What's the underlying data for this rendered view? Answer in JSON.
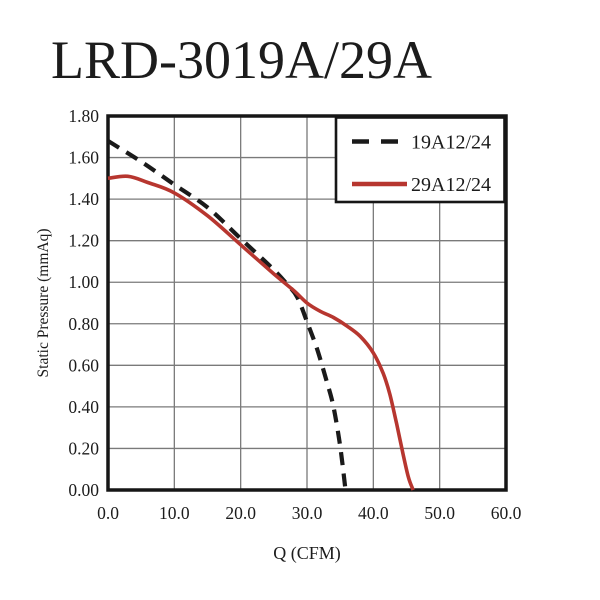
{
  "page": {
    "background": "#ffffff"
  },
  "chart_data": {
    "type": "line",
    "title": "LRD-3019A/29A",
    "xlabel": "Q (CFM)",
    "ylabel": "Static Pressure (mmAq)",
    "xlim": [
      0,
      60
    ],
    "ylim": [
      0,
      1.8
    ],
    "x_ticks": [
      "0.0",
      "10.0",
      "20.0",
      "30.0",
      "40.0",
      "50.0",
      "60.0"
    ],
    "y_ticks": [
      "0.00",
      "0.20",
      "0.40",
      "0.60",
      "0.80",
      "1.00",
      "1.20",
      "1.40",
      "1.60",
      "1.80"
    ],
    "grid": true,
    "grid_color": "#7a7a7a",
    "frame_color": "#161616",
    "legend_position": "top-right-inside",
    "series": [
      {
        "name": "19A12/24",
        "style": "dashed",
        "color": "#1a1a1a",
        "points": [
          [
            0,
            1.68
          ],
          [
            5,
            1.58
          ],
          [
            10,
            1.47
          ],
          [
            15,
            1.36
          ],
          [
            20,
            1.21
          ],
          [
            25,
            1.06
          ],
          [
            27,
            0.99
          ],
          [
            28.5,
            0.93
          ],
          [
            30,
            0.81
          ],
          [
            31.5,
            0.68
          ],
          [
            33,
            0.52
          ],
          [
            34,
            0.4
          ],
          [
            35,
            0.21
          ],
          [
            35.8,
            0.0
          ]
        ]
      },
      {
        "name": "29A12/24",
        "style": "solid",
        "color": "#b7362f",
        "points": [
          [
            0,
            1.5
          ],
          [
            3,
            1.51
          ],
          [
            6,
            1.48
          ],
          [
            10,
            1.43
          ],
          [
            15,
            1.32
          ],
          [
            20,
            1.18
          ],
          [
            25,
            1.04
          ],
          [
            28,
            0.96
          ],
          [
            30,
            0.9
          ],
          [
            32,
            0.86
          ],
          [
            34,
            0.83
          ],
          [
            36,
            0.79
          ],
          [
            38,
            0.74
          ],
          [
            40,
            0.66
          ],
          [
            41.5,
            0.56
          ],
          [
            42.5,
            0.46
          ],
          [
            43.5,
            0.32
          ],
          [
            44.5,
            0.17
          ],
          [
            45.3,
            0.06
          ],
          [
            46,
            0.0
          ]
        ]
      }
    ]
  }
}
